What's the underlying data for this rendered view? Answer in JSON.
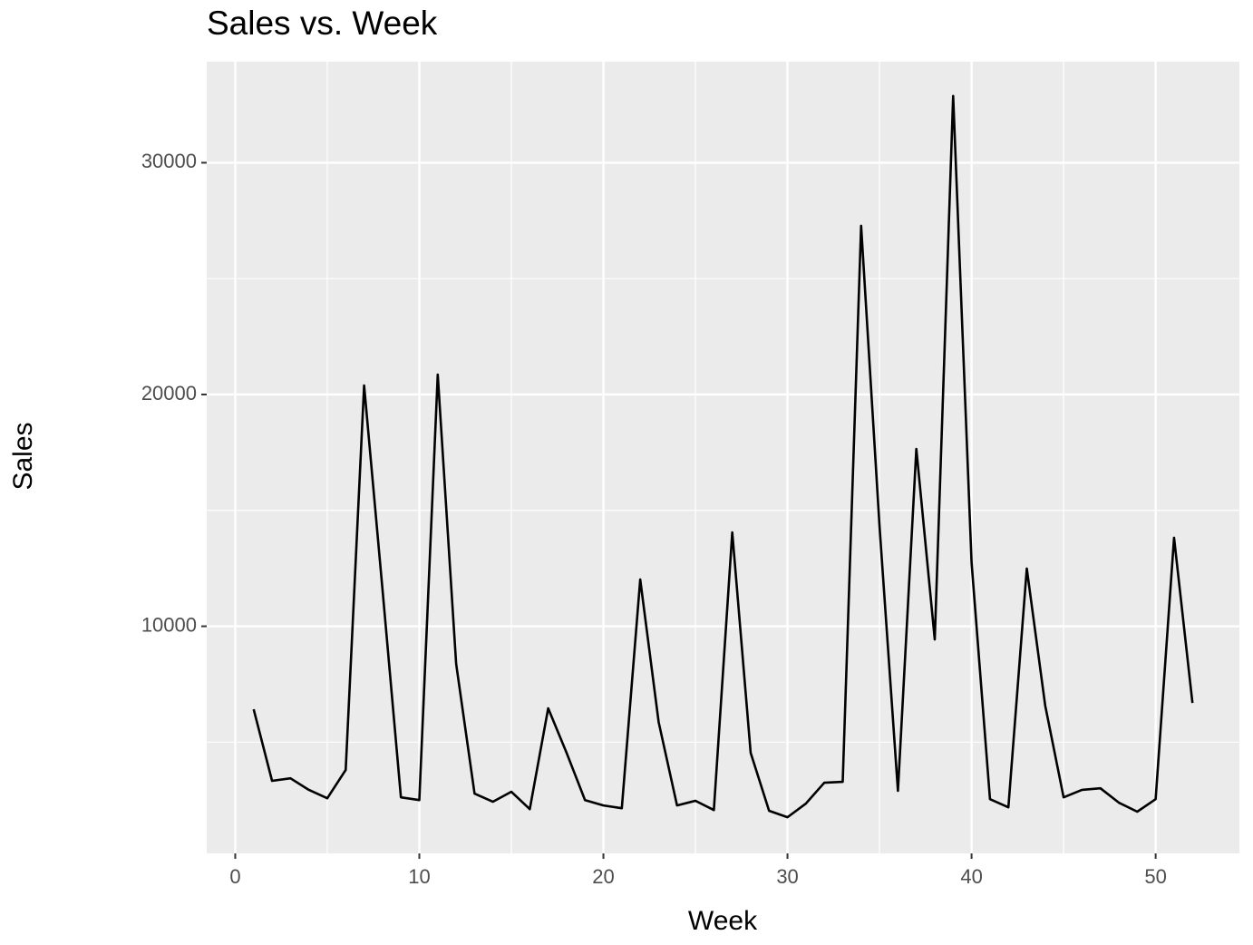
{
  "chart_data": {
    "type": "line",
    "title": "Sales vs. Week",
    "x_label": "Week",
    "y_label": "Sales",
    "x": [
      1,
      2,
      3,
      4,
      5,
      6,
      7,
      8,
      9,
      10,
      11,
      12,
      13,
      14,
      15,
      16,
      17,
      18,
      19,
      20,
      21,
      22,
      23,
      24,
      25,
      26,
      27,
      28,
      29,
      30,
      31,
      32,
      33,
      34,
      35,
      36,
      37,
      38,
      39,
      40,
      41,
      42,
      43,
      44,
      45,
      46,
      47,
      48,
      49,
      50,
      51,
      52
    ],
    "series": [
      {
        "name": "Sales",
        "color": "#000000",
        "values": [
          6420,
          3330,
          3440,
          2940,
          2580,
          3800,
          20390,
          11580,
          2620,
          2500,
          20860,
          8380,
          2780,
          2430,
          2860,
          2110,
          6460,
          4540,
          2500,
          2270,
          2150,
          12020,
          5870,
          2270,
          2470,
          2070,
          14050,
          4540,
          2040,
          1760,
          2350,
          3250,
          3290,
          27280,
          14320,
          2900,
          17650,
          9430,
          32880,
          12760,
          2540,
          2190,
          12490,
          6580,
          2620,
          2940,
          3010,
          2390,
          2000,
          2540,
          13820,
          6690
        ]
      }
    ],
    "xlim": [
      -1.55,
      54.55
    ],
    "ylim": [
      200,
      34360
    ],
    "xticks": [
      0,
      10,
      20,
      30,
      40,
      50
    ],
    "yticks": [
      10000,
      20000,
      30000
    ],
    "minor_xticks": [
      5,
      15,
      25,
      35,
      45
    ],
    "minor_yticks": [
      5000,
      15000,
      25000
    ],
    "grid": true,
    "background": "#ebebeb",
    "grid_color": "#ffffff"
  }
}
